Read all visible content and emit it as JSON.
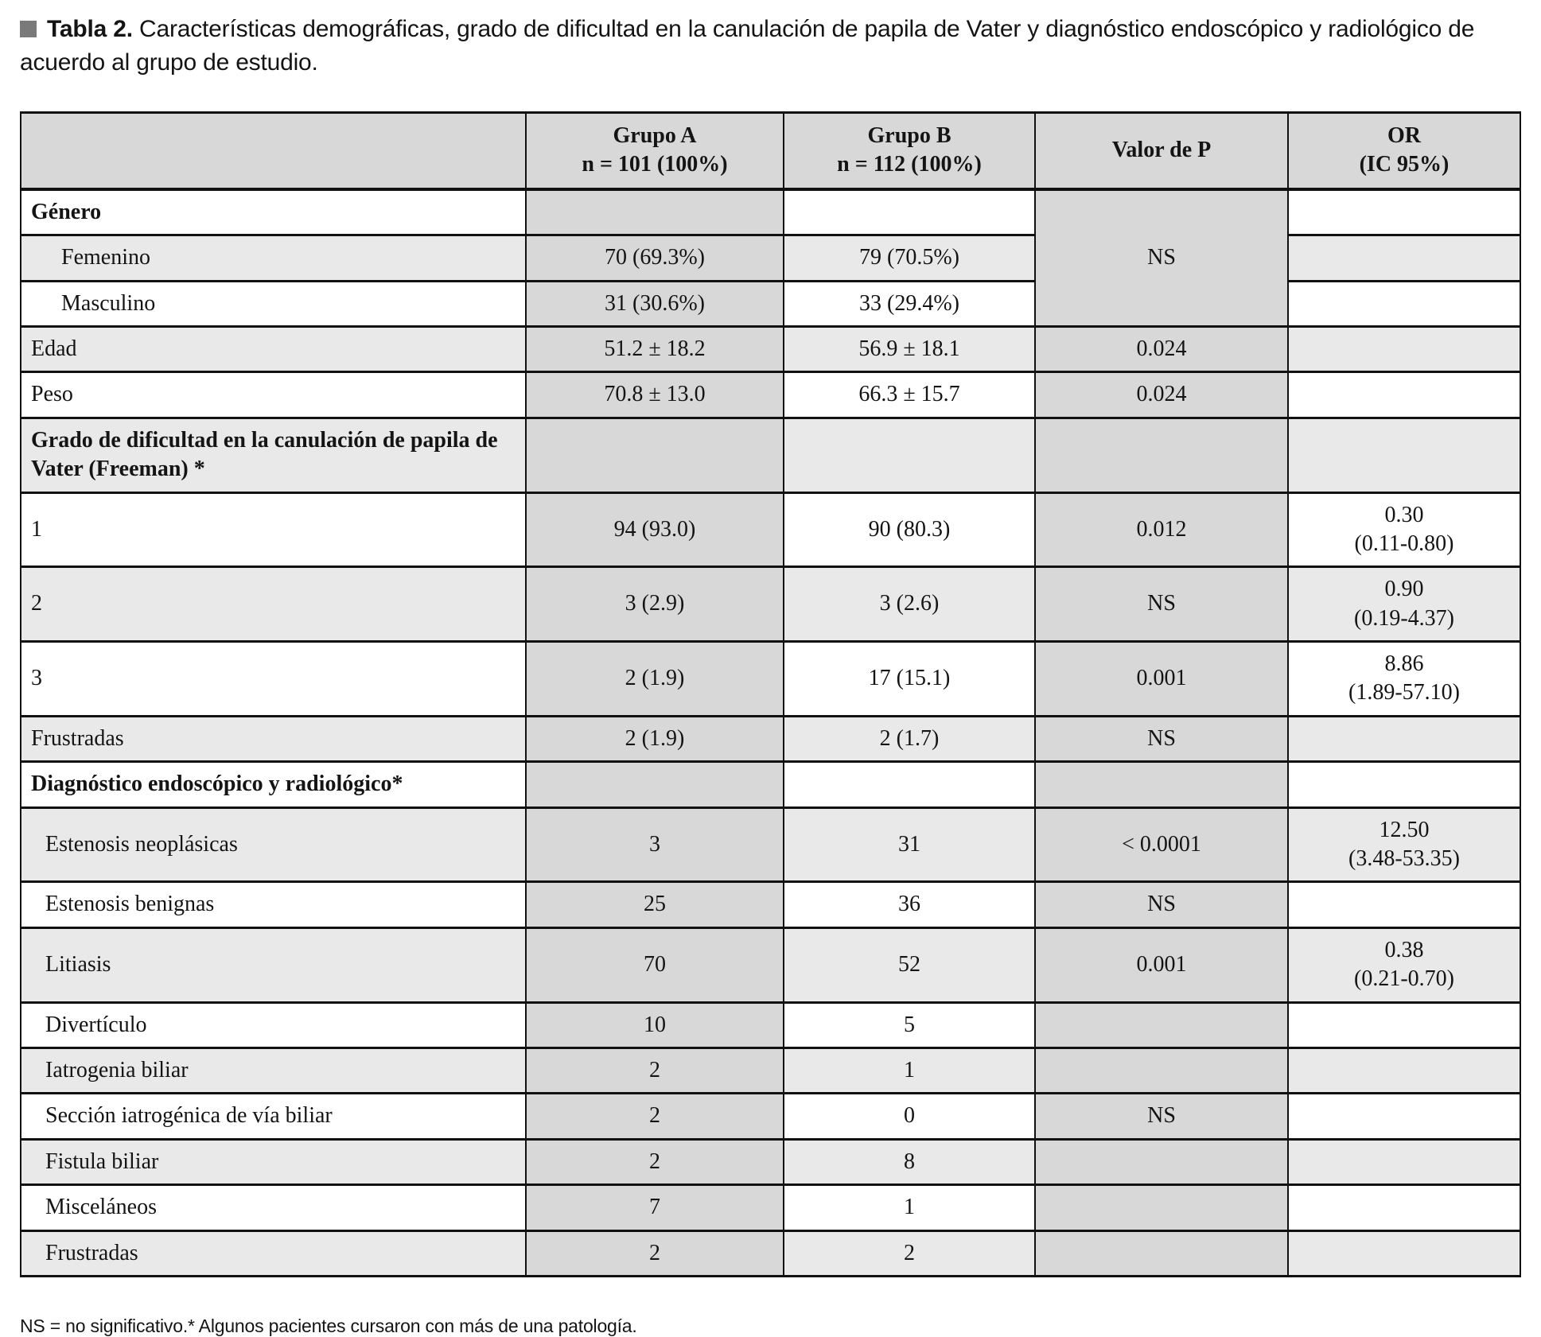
{
  "colors": {
    "header_and_shaded_columns": "#d8d8d8",
    "row_stripe": "#e9e9e9",
    "border": "#111111",
    "text": "#141414",
    "title_square": "#7a7a7a"
  },
  "title": {
    "bullet": "square-bullet",
    "label": "Tabla 2.",
    "text": " Características demográficas, grado de dificultad en la canulación de papila de Vater y diagnóstico endoscópico y radiológico de acuerdo al grupo de estudio."
  },
  "table": {
    "header": {
      "col_label": "",
      "col_grupo_a": "Grupo A\nn =  101 (100%)",
      "col_grupo_b": "Grupo B\nn =  112 (100%)",
      "col_p": "Valor de P",
      "col_or": "OR\n(IC 95%)"
    },
    "rows": [
      {
        "label": "Género",
        "bold": true,
        "indent": 0,
        "grupo_a": "",
        "grupo_b": "",
        "p": "NS",
        "p_rowspan": 3,
        "or": "",
        "stripe": false
      },
      {
        "label": "Femenino",
        "indent": 1,
        "grupo_a": "70 (69.3%)",
        "grupo_b": "79 (70.5%)",
        "p_merged": true,
        "or": "",
        "stripe": true
      },
      {
        "label": "Masculino",
        "indent": 1,
        "grupo_a": "31 (30.6%)",
        "grupo_b": "33 (29.4%)",
        "p_merged": true,
        "or": "",
        "stripe": false
      },
      {
        "label": "Edad",
        "indent": 0,
        "grupo_a": "51.2 ± 18.2",
        "grupo_b": "56.9 ± 18.1",
        "p": "0.024",
        "or": "",
        "stripe": true
      },
      {
        "label": "Peso",
        "indent": 0,
        "grupo_a": "70.8 ± 13.0",
        "grupo_b": "66.3 ± 15.7",
        "p": "0.024",
        "or": "",
        "stripe": false
      },
      {
        "label": "Grado de dificultad en la canulación de papila de Vater (Freeman) *",
        "bold": true,
        "indent": 0,
        "grupo_a": "",
        "grupo_b": "",
        "p": "",
        "or": "",
        "stripe": true
      },
      {
        "label": "1",
        "align": "center",
        "grupo_a": "94 (93.0)",
        "grupo_b": "90 (80.3)",
        "p": "0.012",
        "or": "0.30\n(0.11-0.80)",
        "stripe": false
      },
      {
        "label": "2",
        "align": "center",
        "grupo_a": "3 (2.9)",
        "grupo_b": "3 (2.6)",
        "p": "NS",
        "or": "0.90\n(0.19-4.37)",
        "stripe": true
      },
      {
        "label": "3",
        "align": "center",
        "grupo_a": "2 (1.9)",
        "grupo_b": "17 (15.1)",
        "p": "0.001",
        "or": "8.86\n(1.89-57.10)",
        "stripe": false
      },
      {
        "label": "Frustradas",
        "indent": 0,
        "grupo_a": "2 (1.9)",
        "grupo_b": "2 (1.7)",
        "p": "NS",
        "or": "",
        "stripe": true
      },
      {
        "label": "Diagnóstico endoscópico y radiológico*",
        "bold": true,
        "indent": 0,
        "grupo_a": "",
        "grupo_b": "",
        "p": "",
        "or": "",
        "stripe": false
      },
      {
        "label": "Estenosis neoplásicas",
        "indent": 2,
        "grupo_a": "3",
        "grupo_b": "31",
        "p": "< 0.0001",
        "or": "12.50\n(3.48-53.35)",
        "stripe": true
      },
      {
        "label": "Estenosis benignas",
        "indent": 2,
        "grupo_a": "25",
        "grupo_b": "36",
        "p": "NS",
        "or": "",
        "stripe": false
      },
      {
        "label": "Litiasis",
        "indent": 2,
        "grupo_a": "70",
        "grupo_b": "52",
        "p": "0.001",
        "or": "0.38\n(0.21-0.70)",
        "stripe": true
      },
      {
        "label": "Divertículo",
        "indent": 2,
        "grupo_a": "10",
        "grupo_b": "5",
        "p": "",
        "or": "",
        "stripe": false
      },
      {
        "label": "Iatrogenia biliar",
        "indent": 2,
        "grupo_a": "2",
        "grupo_b": "1",
        "p": "",
        "or": "",
        "stripe": true
      },
      {
        "label": "Sección iatrogénica de vía biliar",
        "indent": 2,
        "grupo_a": "2",
        "grupo_b": "0",
        "p": "NS",
        "or": "",
        "stripe": false
      },
      {
        "label": "Fistula biliar",
        "indent": 2,
        "grupo_a": "2",
        "grupo_b": "8",
        "p": "",
        "or": "",
        "stripe": true
      },
      {
        "label": "Misceláneos",
        "indent": 2,
        "grupo_a": "7",
        "grupo_b": "1",
        "p": "",
        "or": "",
        "stripe": false
      },
      {
        "label": "Frustradas",
        "indent": 2,
        "grupo_a": "2",
        "grupo_b": "2",
        "p": "",
        "or": "",
        "stripe": true
      }
    ]
  },
  "footnote": "NS = no significativo.*  Algunos pacientes cursaron con más de una patología."
}
